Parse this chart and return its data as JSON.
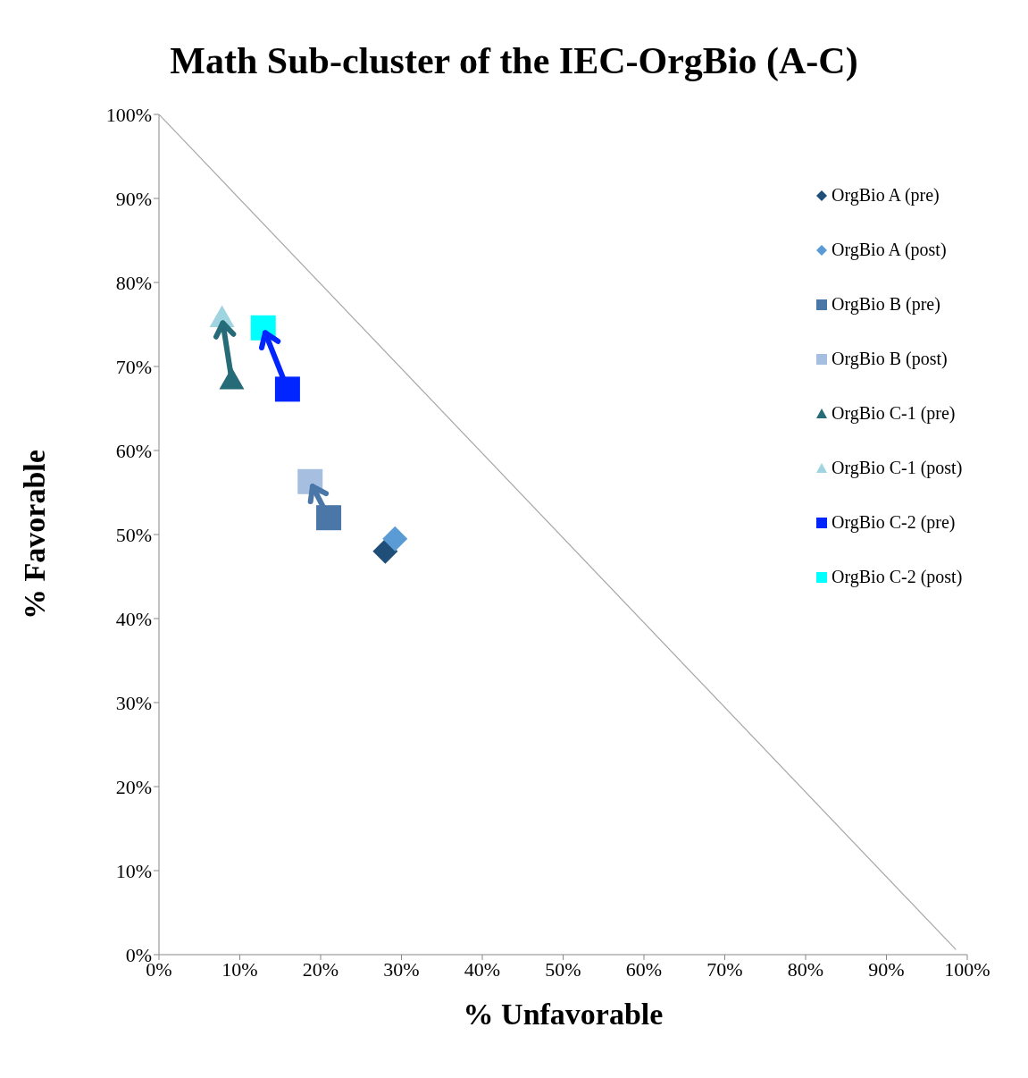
{
  "chart_data": {
    "type": "scatter",
    "title": "Math Sub-cluster of the IEC-OrgBio (A-C)",
    "xlabel": "% Unfavorable",
    "ylabel": "% Favorable",
    "xlim": [
      0,
      100
    ],
    "ylim": [
      0,
      100
    ],
    "xticks": [
      {
        "value": 0,
        "label": "0%"
      },
      {
        "value": 10,
        "label": "10%"
      },
      {
        "value": 20,
        "label": "20%"
      },
      {
        "value": 30,
        "label": "30%"
      },
      {
        "value": 40,
        "label": "40%"
      },
      {
        "value": 50,
        "label": "50%"
      },
      {
        "value": 60,
        "label": "60%"
      },
      {
        "value": 70,
        "label": "70%"
      },
      {
        "value": 80,
        "label": "80%"
      },
      {
        "value": 90,
        "label": "90%"
      },
      {
        "value": 100,
        "label": "100%"
      }
    ],
    "yticks": [
      {
        "value": 0,
        "label": "0%"
      },
      {
        "value": 10,
        "label": "10%"
      },
      {
        "value": 20,
        "label": "20%"
      },
      {
        "value": 30,
        "label": "30%"
      },
      {
        "value": 40,
        "label": "40%"
      },
      {
        "value": 50,
        "label": "50%"
      },
      {
        "value": 60,
        "label": "60%"
      },
      {
        "value": 70,
        "label": "70%"
      },
      {
        "value": 80,
        "label": "80%"
      },
      {
        "value": 90,
        "label": "90%"
      },
      {
        "value": 100,
        "label": "100%"
      }
    ],
    "legend": "right",
    "series": [
      {
        "name": "OrgBio A (pre)",
        "color": "#1f4e79",
        "marker": "diamond",
        "x": [
          28.0
        ],
        "values": [
          48.0
        ]
      },
      {
        "name": "OrgBio A (post)",
        "color": "#5b9bd5",
        "marker": "diamond",
        "x": [
          29.2
        ],
        "values": [
          49.5
        ]
      },
      {
        "name": "OrgBio B (pre)",
        "color": "#4a76a8",
        "marker": "square",
        "x": [
          21.0
        ],
        "values": [
          52.0
        ]
      },
      {
        "name": "OrgBio B (post)",
        "color": "#a6bfe0",
        "marker": "square",
        "x": [
          18.7
        ],
        "values": [
          56.3
        ]
      },
      {
        "name": "OrgBio C-1 (pre)",
        "color": "#266b78",
        "marker": "triangle",
        "x": [
          9.0
        ],
        "values": [
          68.4
        ]
      },
      {
        "name": "OrgBio C-1 (post)",
        "color": "#a0d4e0",
        "marker": "triangle",
        "x": [
          7.8
        ],
        "values": [
          75.8
        ]
      },
      {
        "name": "OrgBio C-2 (pre)",
        "color": "#0025ff",
        "marker": "square",
        "x": [
          15.9
        ],
        "values": [
          67.3
        ]
      },
      {
        "name": "OrgBio C-2 (post)",
        "color": "#00ffff",
        "marker": "square",
        "x": [
          12.9
        ],
        "values": [
          74.6
        ]
      },
      {
        "type": "line",
        "color": "#a6a6a6",
        "x": [
          0,
          98.6
        ],
        "values": [
          100,
          0.6
        ]
      }
    ]
  }
}
